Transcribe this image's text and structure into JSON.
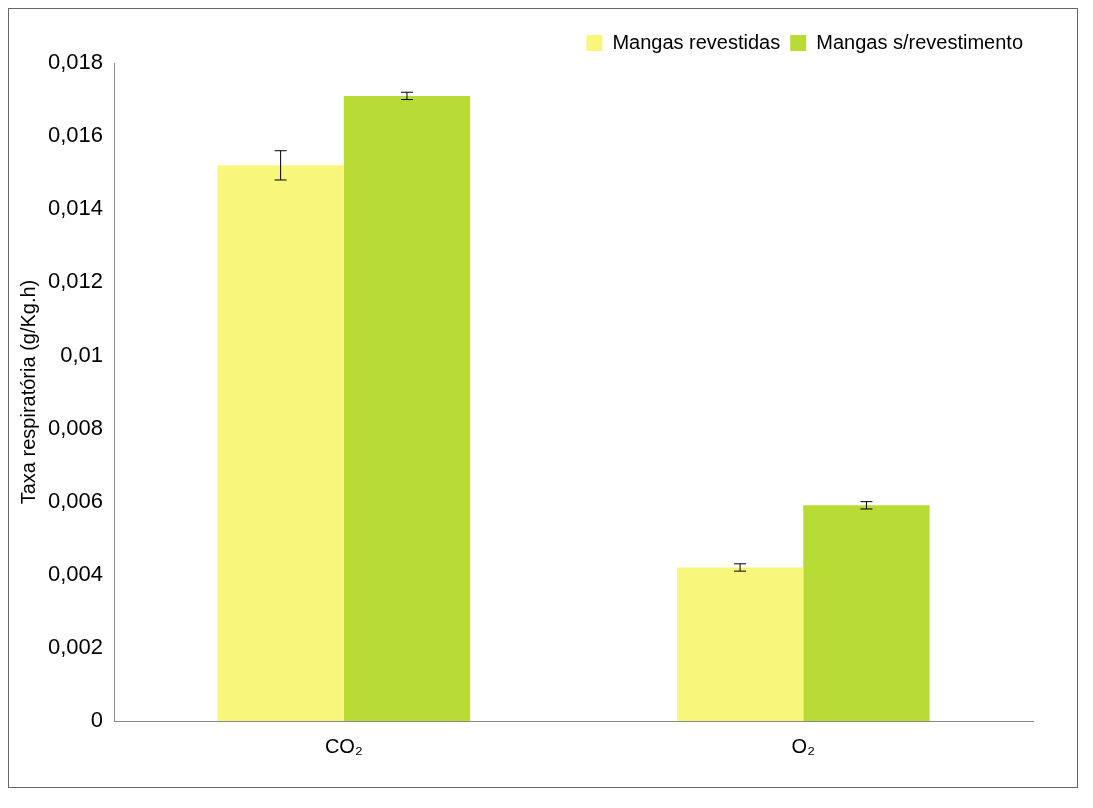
{
  "chart_data": {
    "type": "bar",
    "ylabel": "Taxa respiratória (g/Kg.h)",
    "categories": [
      "CO₂",
      "O₂"
    ],
    "series": [
      {
        "name": "Mangas revestidas",
        "color": "#f8f77c",
        "values": [
          0.0152,
          0.0042
        ],
        "errors": [
          0.0004,
          0.0001
        ]
      },
      {
        "name": "Mangas s/revestimento",
        "color": "#b8dc34",
        "values": [
          0.0171,
          0.0059
        ],
        "errors": [
          0.0001,
          0.0001
        ]
      }
    ],
    "ylim": [
      0,
      0.018
    ],
    "yticks": [
      {
        "value": 0,
        "label": "0"
      },
      {
        "value": 0.002,
        "label": "0,002"
      },
      {
        "value": 0.004,
        "label": "0,004"
      },
      {
        "value": 0.006,
        "label": "0,006"
      },
      {
        "value": 0.008,
        "label": "0,008"
      },
      {
        "value": 0.01,
        "label": "0,01"
      },
      {
        "value": 0.012,
        "label": "0,012"
      },
      {
        "value": 0.014,
        "label": "0,014"
      },
      {
        "value": 0.016,
        "label": "0,016"
      },
      {
        "value": 0.018,
        "label": "0,018"
      }
    ],
    "grid": false,
    "legend": "top right"
  }
}
